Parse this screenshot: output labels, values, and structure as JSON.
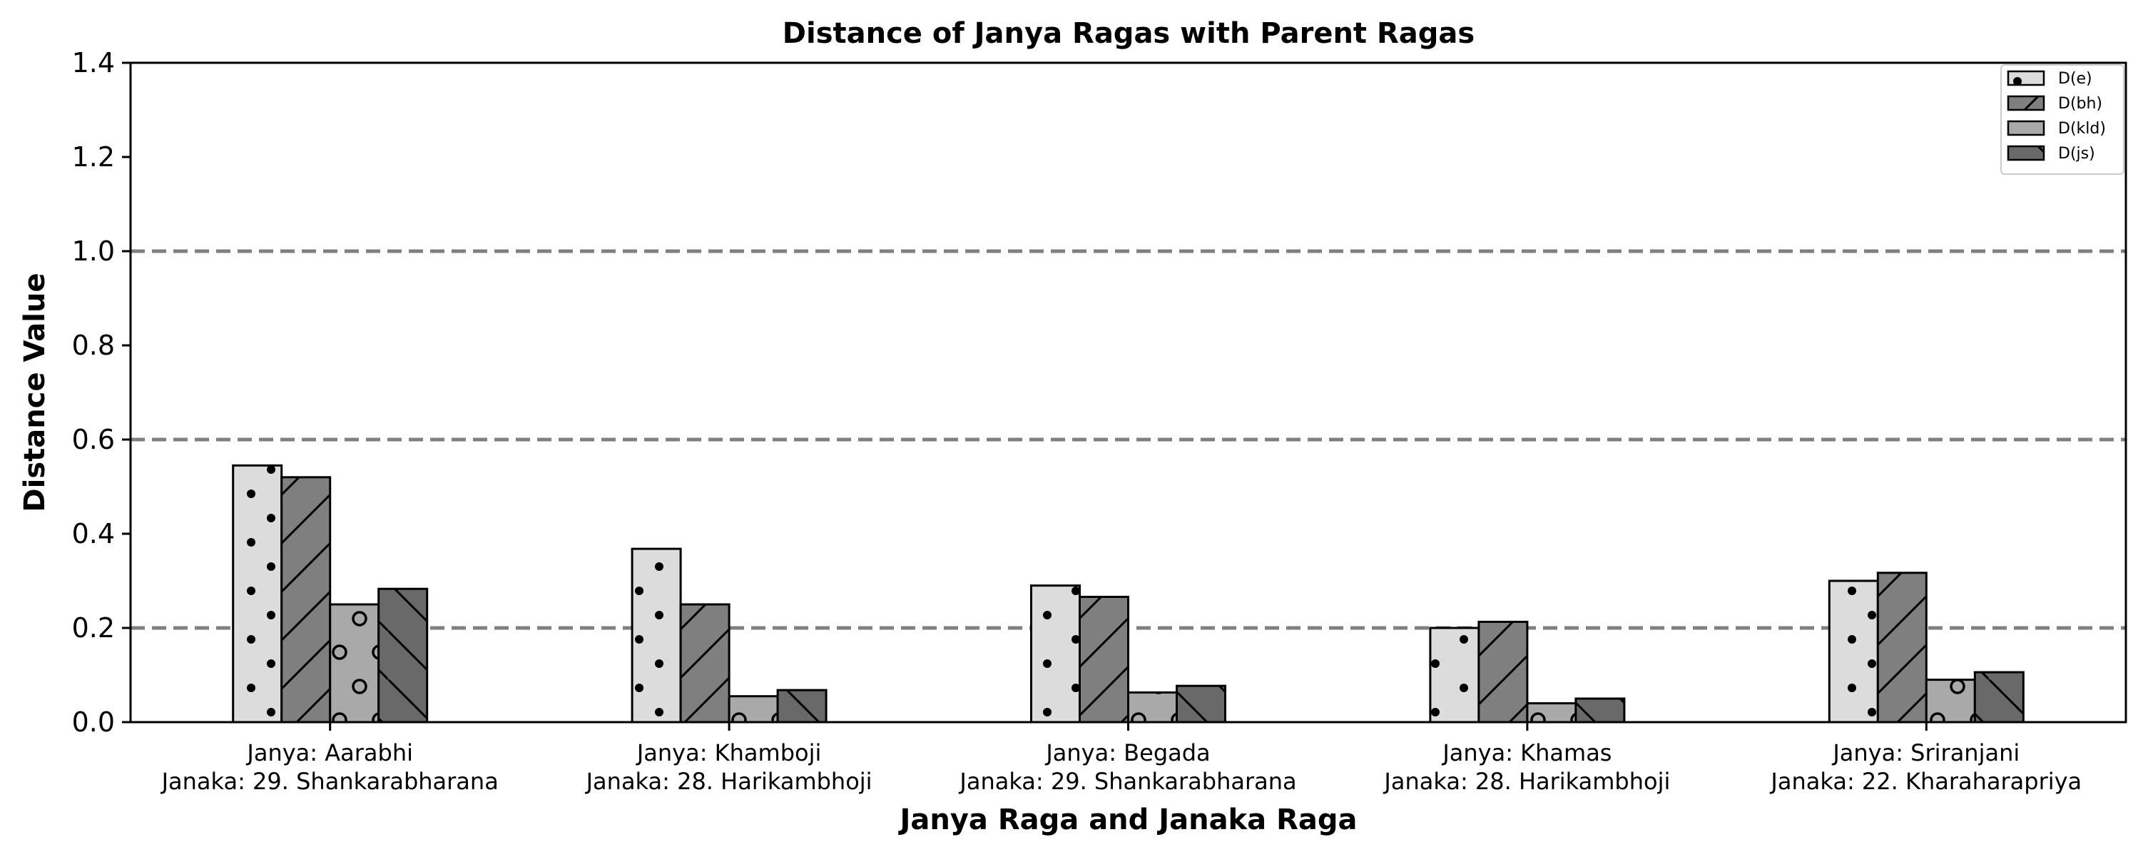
{
  "chart_data": {
    "type": "bar",
    "title": "Distance of Janya Ragas with Parent Ragas",
    "xlabel": "Janya Raga and Janaka Raga",
    "ylabel": "Distance Value",
    "ylim": [
      0,
      1.4
    ],
    "yticks": [
      "0.0",
      "0.2",
      "0.4",
      "0.6",
      "0.8",
      "1.0",
      "1.2",
      "1.4"
    ],
    "reference_lines": [
      0.2,
      0.6,
      1.0
    ],
    "grid": false,
    "legend_position": "top-right",
    "categories": [
      [
        "Janya: Aarabhi",
        "Janaka: 29. Shankarabharana"
      ],
      [
        "Janya: Khamboji",
        "Janaka: 28. Harikambhoji"
      ],
      [
        "Janya: Begada",
        "Janaka: 29. Shankarabharana"
      ],
      [
        "Janya: Khamas",
        "Janaka: 28. Harikambhoji"
      ],
      [
        "Janya: Sriranjani",
        "Janaka: 22. Kharaharapriya"
      ]
    ],
    "series": [
      {
        "name": "D(e)",
        "values": [
          0.545,
          0.368,
          0.29,
          0.2,
          0.3
        ],
        "color": "#dcdcdc",
        "pattern": "dots"
      },
      {
        "name": "D(bh)",
        "values": [
          0.52,
          0.25,
          0.266,
          0.213,
          0.317
        ],
        "color": "#7f7f7f",
        "pattern": "forward-hatch"
      },
      {
        "name": "D(kld)",
        "values": [
          0.25,
          0.055,
          0.063,
          0.04,
          0.09
        ],
        "color": "#a9a9a9",
        "pattern": "circles"
      },
      {
        "name": "D(js)",
        "values": [
          0.283,
          0.068,
          0.077,
          0.05,
          0.106
        ],
        "color": "#696969",
        "pattern": "back-hatch"
      }
    ]
  }
}
